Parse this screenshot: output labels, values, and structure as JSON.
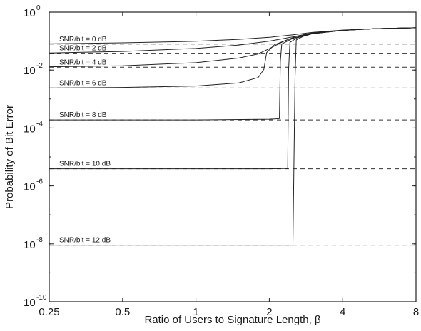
{
  "chart_data": {
    "type": "line",
    "xscale": "log2",
    "yscale": "log10",
    "xlim": [
      0.25,
      8
    ],
    "ylim": [
      1e-10,
      1
    ],
    "xlabel": "Ratio of Users to Signature Length, β",
    "ylabel": "Probability of Bit Error",
    "x_ticks": [
      {
        "value": 0.25,
        "label": "0.25"
      },
      {
        "value": 0.5,
        "label": "0.5"
      },
      {
        "value": 1,
        "label": "1"
      },
      {
        "value": 2,
        "label": "2"
      },
      {
        "value": 4,
        "label": "4"
      },
      {
        "value": 8,
        "label": "8"
      }
    ],
    "y_ticks": [
      {
        "value": 1,
        "base": "10",
        "exp": "0"
      },
      {
        "value": 0.01,
        "base": "10",
        "exp": "-2"
      },
      {
        "value": 0.0001,
        "base": "10",
        "exp": "-4"
      },
      {
        "value": 1e-06,
        "base": "10",
        "exp": "-6"
      },
      {
        "value": 1e-08,
        "base": "10",
        "exp": "-8"
      },
      {
        "value": 1e-10,
        "base": "10",
        "exp": "-10"
      }
    ],
    "grid": false,
    "series": [
      {
        "label": "SNR/bit = 0 dB",
        "single_user_ber": 0.079,
        "points": [
          [
            0.25,
            0.081
          ],
          [
            0.5,
            0.087
          ],
          [
            1,
            0.099
          ],
          [
            1.5,
            0.115
          ],
          [
            2,
            0.135
          ],
          [
            2.5,
            0.165
          ],
          [
            3,
            0.2
          ],
          [
            4,
            0.24
          ],
          [
            5.5,
            0.27
          ],
          [
            8,
            0.29
          ]
        ]
      },
      {
        "label": "SNR/bit = 2 dB",
        "single_user_ber": 0.038,
        "points": [
          [
            0.25,
            0.039
          ],
          [
            0.5,
            0.044
          ],
          [
            1,
            0.056
          ],
          [
            1.5,
            0.073
          ],
          [
            2,
            0.1
          ],
          [
            2.5,
            0.14
          ],
          [
            3,
            0.19
          ],
          [
            4,
            0.235
          ],
          [
            5.5,
            0.27
          ],
          [
            8,
            0.29
          ]
        ]
      },
      {
        "label": "SNR/bit = 4 dB",
        "single_user_ber": 0.0125,
        "points": [
          [
            0.25,
            0.013
          ],
          [
            0.5,
            0.014
          ],
          [
            1,
            0.018
          ],
          [
            1.5,
            0.026
          ],
          [
            1.8,
            0.036
          ],
          [
            2,
            0.055
          ],
          [
            2.3,
            0.1
          ],
          [
            2.6,
            0.15
          ],
          [
            3,
            0.19
          ],
          [
            4,
            0.235
          ],
          [
            5.5,
            0.27
          ],
          [
            8,
            0.29
          ]
        ]
      },
      {
        "label": "SNR/bit = 6 dB",
        "single_user_ber": 0.0024,
        "points": [
          [
            0.25,
            0.0024
          ],
          [
            0.5,
            0.0025
          ],
          [
            1,
            0.0028
          ],
          [
            1.5,
            0.0036
          ],
          [
            1.8,
            0.0055
          ],
          [
            1.9,
            0.0105
          ],
          [
            1.95,
            0.04
          ],
          [
            2.1,
            0.075
          ],
          [
            2.4,
            0.115
          ],
          [
            2.7,
            0.15
          ],
          [
            3,
            0.185
          ],
          [
            4,
            0.235
          ],
          [
            5.5,
            0.27
          ],
          [
            8,
            0.29
          ]
        ]
      },
      {
        "label": "SNR/bit = 8 dB",
        "single_user_ber": 0.00019,
        "points": [
          [
            0.25,
            0.00019
          ],
          [
            1,
            0.00019
          ],
          [
            2,
            0.0002
          ],
          [
            2.2,
            0.00021
          ],
          [
            2.22,
            0.02
          ],
          [
            2.25,
            0.08
          ],
          [
            2.5,
            0.125
          ],
          [
            2.8,
            0.16
          ],
          [
            3,
            0.18
          ],
          [
            4,
            0.235
          ],
          [
            5.5,
            0.27
          ],
          [
            8,
            0.29
          ]
        ]
      },
      {
        "label": "SNR/bit = 10 dB",
        "single_user_ber": 3.9e-06,
        "points": [
          [
            0.25,
            3.9e-06
          ],
          [
            1,
            3.9e-06
          ],
          [
            2,
            3.9e-06
          ],
          [
            2.38,
            4e-06
          ],
          [
            2.4,
            0.01
          ],
          [
            2.43,
            0.09
          ],
          [
            2.6,
            0.13
          ],
          [
            3,
            0.18
          ],
          [
            4,
            0.235
          ],
          [
            5.5,
            0.27
          ],
          [
            8,
            0.29
          ]
        ]
      },
      {
        "label": "SNR/bit = 12 dB",
        "single_user_ber": 9e-09,
        "points": [
          [
            0.25,
            9e-09
          ],
          [
            1,
            9e-09
          ],
          [
            2,
            9e-09
          ],
          [
            2.5,
            9e-09
          ],
          [
            2.55,
            0.005
          ],
          [
            2.58,
            0.11
          ],
          [
            2.75,
            0.145
          ],
          [
            3,
            0.18
          ],
          [
            4,
            0.235
          ],
          [
            5.5,
            0.27
          ],
          [
            8,
            0.29
          ]
        ]
      }
    ]
  }
}
